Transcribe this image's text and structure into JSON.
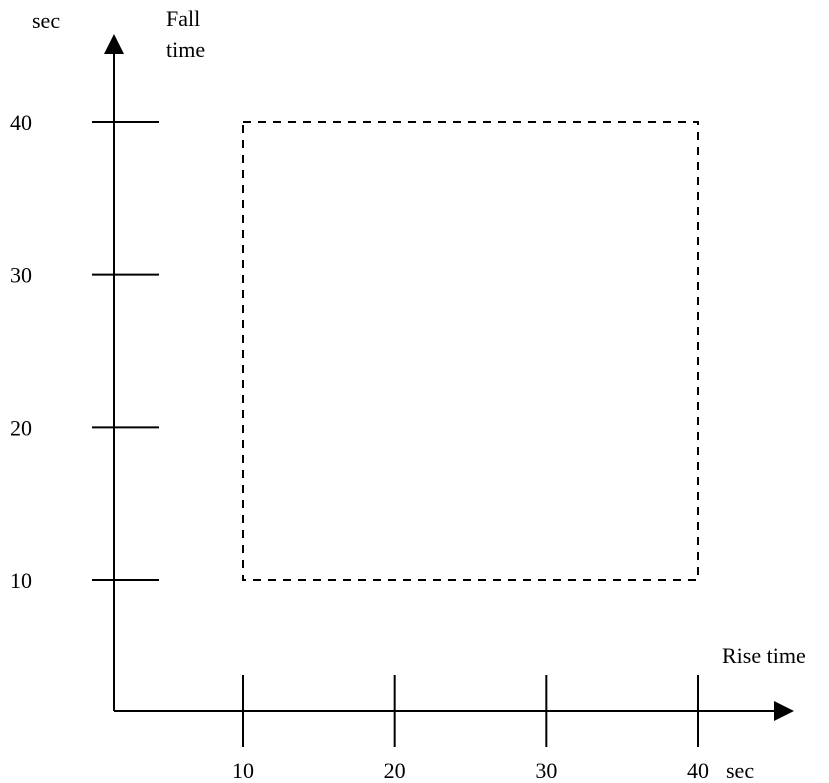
{
  "chart_data": {
    "type": "scatter",
    "title": "",
    "xlabel": "Rise time",
    "ylabel_lines": [
      "Fall",
      "time"
    ],
    "x_unit": "sec",
    "y_unit": "sec",
    "x_ticks": [
      10,
      20,
      30,
      40
    ],
    "y_ticks": [
      10,
      20,
      30,
      40
    ],
    "x_tick_labels": [
      "10",
      "20",
      "30",
      "40"
    ],
    "y_tick_labels": [
      "10",
      "20",
      "30",
      "40"
    ],
    "region": {
      "style": "dashed",
      "x_range": [
        10,
        40
      ],
      "y_range": [
        10,
        40
      ]
    },
    "grid": false,
    "legend": "none"
  },
  "colors": {
    "axis": "#000000",
    "region": "#000000"
  }
}
